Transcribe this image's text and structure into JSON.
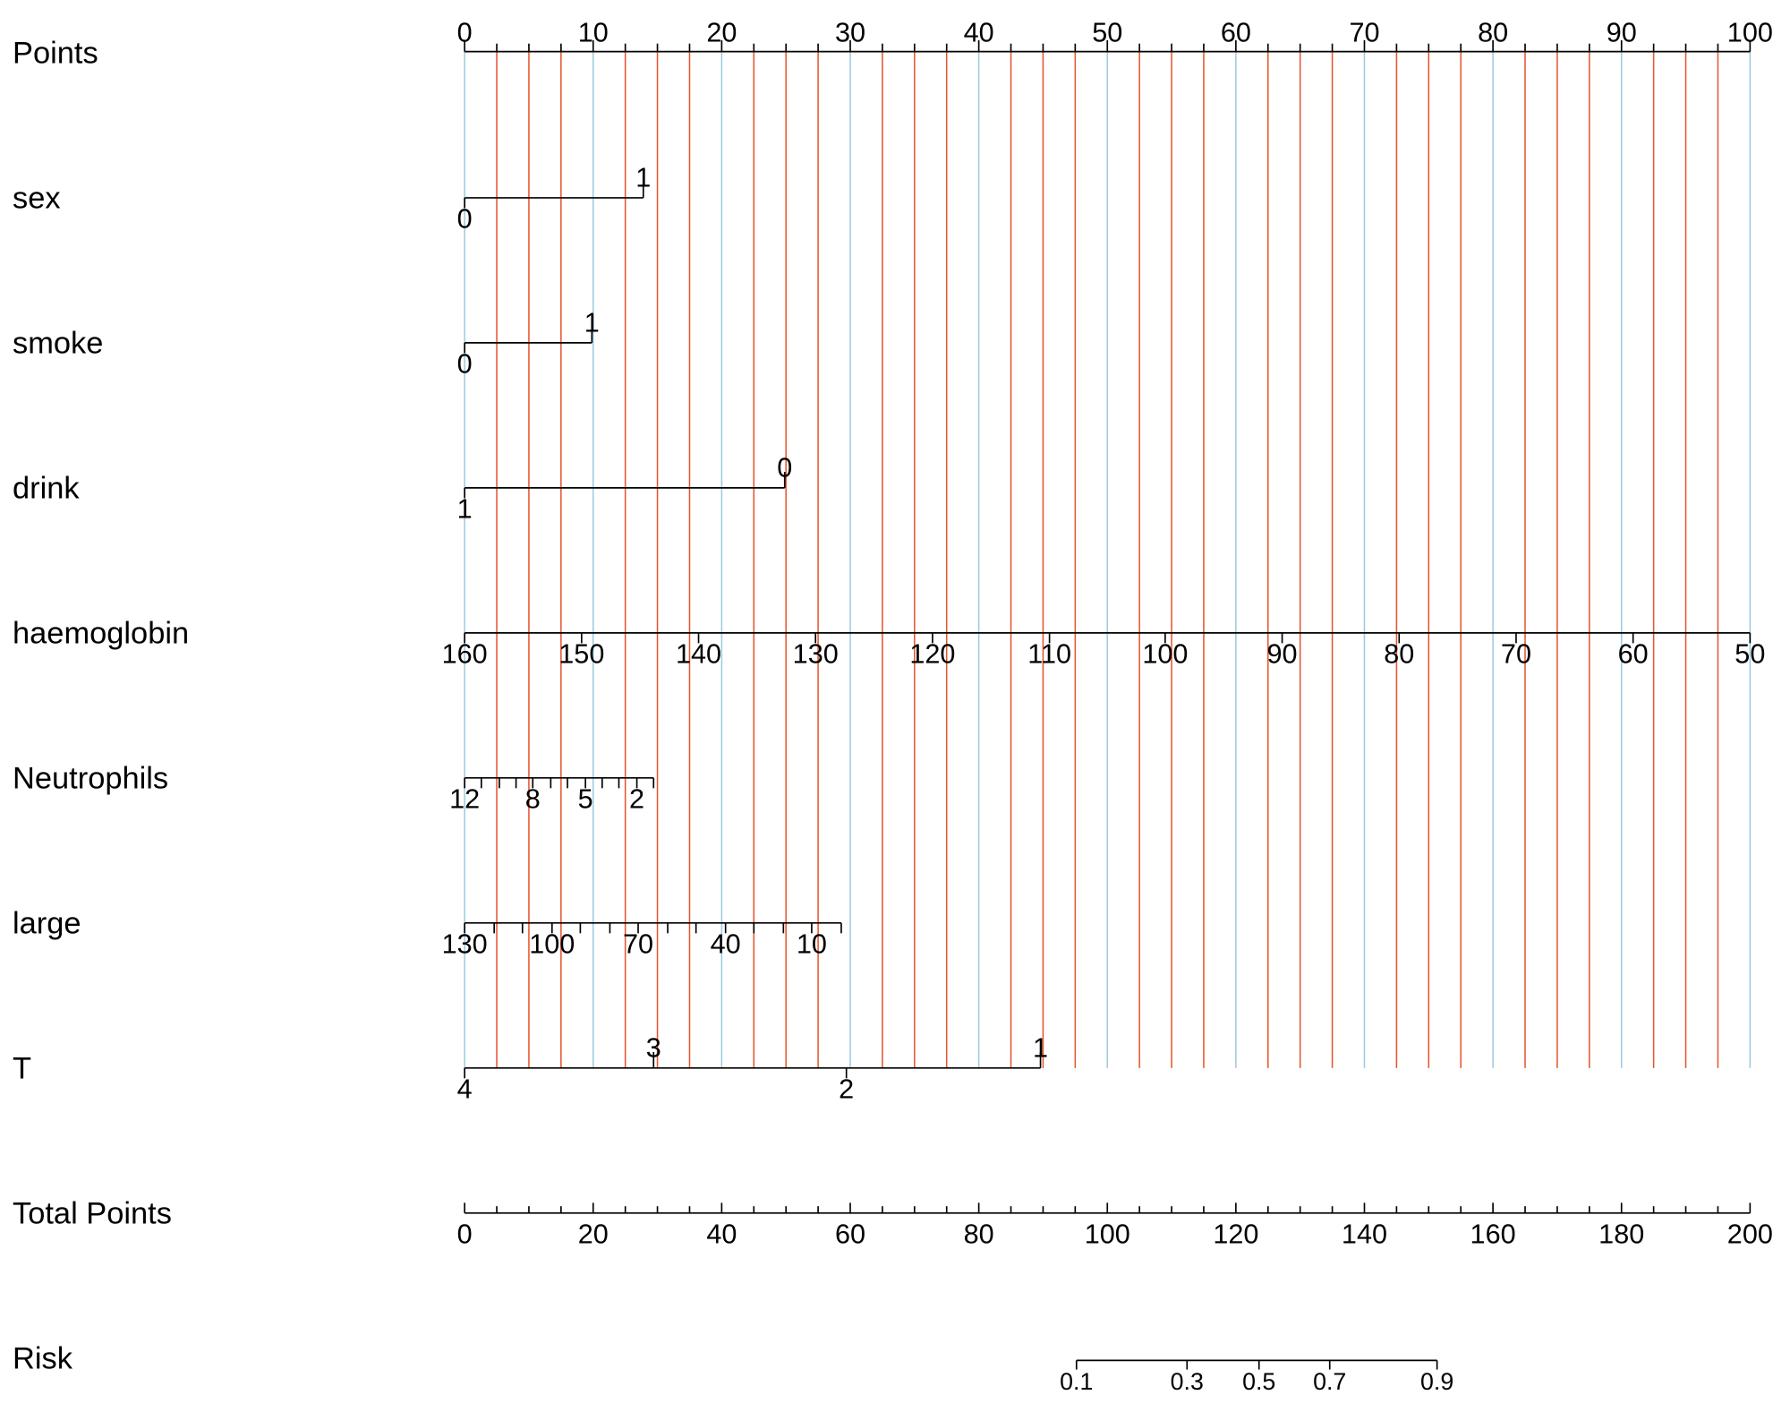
{
  "chart_data": {
    "type": "nomogram",
    "points_axis": {
      "name": "Points",
      "xlim": [
        0,
        100
      ],
      "xticks": [
        0,
        10,
        20,
        30,
        40,
        50,
        60,
        70,
        80,
        90,
        100
      ],
      "minor_ticks": [
        2.5,
        5,
        7.5,
        12.5,
        15,
        17.5,
        22.5,
        25,
        27.5,
        32.5,
        35,
        37.5,
        42.5,
        45,
        47.5,
        52.5,
        55,
        57.5,
        62.5,
        65,
        67.5,
        72.5,
        75,
        77.5,
        82.5,
        85,
        87.5,
        92.5,
        95,
        97.5
      ]
    },
    "grid": true,
    "grid_major_color": "#9ecae1",
    "grid_minor_color": "#e6552d",
    "variables": [
      {
        "name": "sex",
        "ticks": [
          0,
          1
        ],
        "points": [
          0,
          13.9
        ]
      },
      {
        "name": "smoke",
        "ticks": [
          0,
          1
        ],
        "points": [
          0,
          9.9
        ]
      },
      {
        "name": "drink",
        "ticks": [
          1,
          0
        ],
        "points": [
          0,
          24.9
        ]
      },
      {
        "name": "haemoglobin",
        "ticks": [
          160,
          150,
          140,
          130,
          120,
          110,
          100,
          90,
          80,
          70,
          60,
          50
        ],
        "points": [
          0,
          9.1,
          18.2,
          27.3,
          36.4,
          45.5,
          54.5,
          63.6,
          72.7,
          81.8,
          90.9,
          100
        ]
      },
      {
        "name": "Neutrophils",
        "ticks": [
          12,
          null,
          null,
          null,
          8,
          null,
          null,
          5,
          null,
          null,
          2,
          null
        ],
        "points": [
          0,
          1.3,
          2.7,
          4.0,
          5.3,
          6.7,
          8.0,
          9.4,
          10.7,
          12.0,
          13.4,
          14.7
        ]
      },
      {
        "name": "large",
        "ticks": [
          130,
          null,
          null,
          100,
          null,
          null,
          70,
          null,
          null,
          40,
          null,
          null,
          10,
          null
        ],
        "points": [
          0,
          2.3,
          4.5,
          6.8,
          9.0,
          11.3,
          13.5,
          15.8,
          18.0,
          20.3,
          22.5,
          24.8,
          27.0,
          29.3
        ]
      },
      {
        "name": "T",
        "ticks": [
          4,
          3,
          2,
          1
        ],
        "points": [
          0,
          14.7,
          29.7,
          44.8
        ]
      }
    ],
    "total_points_axis": {
      "name": "Total Points",
      "xlim": [
        0,
        200
      ],
      "xticks": [
        0,
        20,
        40,
        60,
        80,
        100,
        120,
        140,
        160,
        180,
        200
      ],
      "minor_ticks": [
        5,
        10,
        15,
        25,
        30,
        35,
        45,
        50,
        55,
        65,
        70,
        75,
        85,
        90,
        95,
        105,
        110,
        115,
        125,
        130,
        135,
        145,
        150,
        155,
        165,
        170,
        175,
        185,
        190,
        195
      ]
    },
    "risk": {
      "name": "Risk",
      "ticks": [
        0.1,
        0.3,
        0.5,
        0.7,
        0.9
      ],
      "total_points": [
        95.2,
        112.4,
        123.6,
        134.6,
        151.3
      ]
    }
  }
}
